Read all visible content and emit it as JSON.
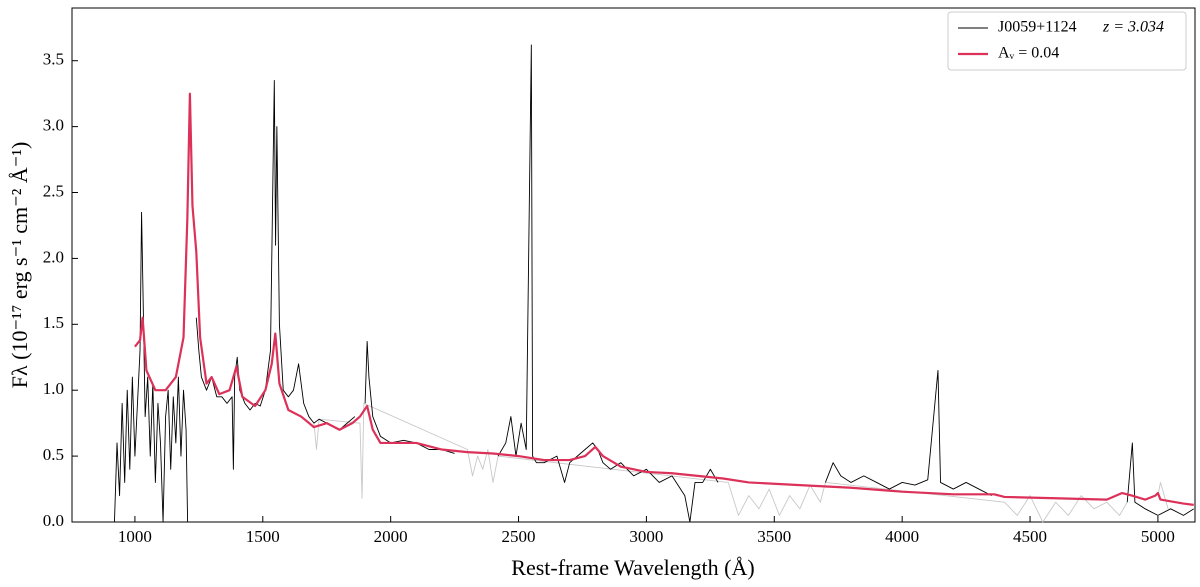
{
  "chart_data": {
    "type": "line",
    "xlabel": "Rest-frame Wavelength (Å)",
    "ylabel": "Fλ (10⁻¹⁷ erg s⁻¹ cm⁻² Å⁻¹)",
    "xlim": [
      754,
      5145
    ],
    "ylim": [
      0,
      3.9
    ],
    "xticks": [
      1000,
      1500,
      2000,
      2500,
      3000,
      3500,
      4000,
      4500,
      5000
    ],
    "yticks": [
      {
        "value": 0,
        "label": "0.0"
      },
      0.5,
      {
        "value": 1,
        "label": "1.0"
      },
      1.5,
      {
        "value": 2,
        "label": "2.0"
      },
      2.5,
      {
        "value": 3,
        "label": "3.0"
      },
      3.5
    ],
    "legend_position": "upper right",
    "legend_annotation": "z = 3.034",
    "series": [
      {
        "name": "J0059+1124",
        "color": "#000000",
        "width": 0.9,
        "x": [
          920,
          930,
          940,
          950,
          960,
          970,
          980,
          990,
          1000,
          1010,
          1020,
          1026,
          1032,
          1040,
          1050,
          1060,
          1070,
          1080,
          1090,
          1100,
          1110,
          1120,
          1130,
          1140,
          1150,
          1160,
          1170,
          1180,
          1190,
          1200,
          1206,
          1212,
          1240,
          1250,
          1260,
          1280,
          1300,
          1320,
          1340,
          1360,
          1380,
          1385,
          1390,
          1400,
          1410,
          1430,
          1450,
          1470,
          1490,
          1510,
          1530,
          1545,
          1550,
          1555,
          1565,
          1580,
          1600,
          1620,
          1640,
          1660,
          1680,
          1700,
          1720,
          1750,
          1780,
          1800,
          1830,
          1860,
          1880,
          1900,
          1908,
          1915,
          1930,
          1960,
          2000,
          2050,
          2100,
          2150,
          2200,
          2250,
          2300,
          2420,
          2450,
          2470,
          2490,
          2510,
          2530,
          2550,
          2555,
          2570,
          2600,
          2650,
          2680,
          2700,
          2730,
          2760,
          2790,
          2810,
          2830,
          2860,
          2900,
          2950,
          3000,
          3050,
          3100,
          3150,
          3170,
          3190,
          3220,
          3250,
          3280,
          3300,
          3700,
          3730,
          3760,
          3800,
          3850,
          3900,
          3950,
          4000,
          4050,
          4100,
          4140,
          4150,
          4200,
          4250,
          4300,
          4350,
          4380,
          4880,
          4900,
          4910,
          4950,
          5000,
          5050,
          5100,
          5140
        ],
        "values": [
          0.0,
          0.6,
          0.2,
          0.9,
          0.3,
          1.0,
          0.4,
          1.1,
          0.5,
          0.9,
          1.3,
          2.35,
          1.7,
          0.8,
          1.1,
          0.5,
          1.05,
          0.3,
          0.9,
          0.6,
          0.0,
          0.8,
          1.0,
          0.4,
          0.95,
          0.6,
          1.1,
          0.5,
          1.0,
          0.7,
          0.0,
          null,
          1.55,
          1.3,
          1.1,
          1.0,
          1.1,
          0.95,
          0.95,
          0.9,
          0.95,
          0.4,
          1.1,
          1.25,
          1.0,
          0.9,
          0.85,
          0.9,
          0.88,
          1.0,
          1.3,
          3.35,
          2.1,
          3.0,
          1.5,
          1.0,
          0.95,
          1.0,
          1.2,
          0.9,
          0.8,
          0.75,
          0.78,
          0.75,
          0.72,
          0.7,
          0.75,
          0.8,
          null,
          0.9,
          1.37,
          1.1,
          0.8,
          0.65,
          0.6,
          0.62,
          0.6,
          0.55,
          0.55,
          0.52,
          null,
          0.5,
          0.6,
          0.8,
          0.5,
          0.75,
          0.55,
          3.62,
          0.5,
          0.45,
          0.45,
          0.5,
          0.3,
          0.45,
          0.5,
          0.55,
          0.6,
          0.55,
          0.45,
          0.4,
          0.45,
          0.35,
          0.4,
          0.3,
          0.35,
          0.2,
          0.0,
          0.3,
          0.3,
          0.4,
          0.3,
          null,
          0.3,
          0.45,
          0.35,
          0.3,
          0.35,
          0.3,
          0.25,
          0.3,
          0.28,
          0.32,
          1.15,
          0.3,
          0.25,
          0.3,
          0.25,
          0.2,
          null,
          0.15,
          0.6,
          0.15,
          0.1,
          0.05,
          0.1,
          0.05,
          0.1
        ]
      },
      {
        "color": "#c8c8c8",
        "width": 0.9,
        "x": [
          1700,
          1710,
          1720,
          1880,
          1888,
          1895,
          2300,
          2320,
          2340,
          2360,
          2380,
          2400,
          2420,
          3320,
          3360,
          3400,
          3440,
          3480,
          3520,
          3560,
          3600,
          3640,
          3680,
          3700,
          4400,
          4450,
          4500,
          4550,
          4600,
          4650,
          4700,
          4750,
          4800,
          4850,
          4880,
          4950,
          5000,
          5010,
          5040
        ],
        "values": [
          0.75,
          0.55,
          0.78,
          0.75,
          0.18,
          0.9,
          0.55,
          0.35,
          0.5,
          0.4,
          0.55,
          0.3,
          0.5,
          0.3,
          0.05,
          0.2,
          0.1,
          0.25,
          0.05,
          0.2,
          0.1,
          0.28,
          0.15,
          0.3,
          0.15,
          0.05,
          0.2,
          0.0,
          0.15,
          0.05,
          0.2,
          0.1,
          0.15,
          0.05,
          0.15,
          null,
          0.2,
          0.3,
          0.1
        ]
      },
      {
        "name": "Aᵥ = 0.04",
        "color": "#dc3158",
        "width": 2.2,
        "x": [
          1000,
          1020,
          1030,
          1045,
          1080,
          1120,
          1160,
          1190,
          1205,
          1215,
          1225,
          1240,
          1255,
          1280,
          1300,
          1330,
          1370,
          1397,
          1420,
          1470,
          1510,
          1535,
          1549,
          1565,
          1600,
          1650,
          1700,
          1750,
          1800,
          1850,
          1880,
          1908,
          1930,
          1960,
          2000,
          2100,
          2200,
          2300,
          2400,
          2500,
          2600,
          2700,
          2760,
          2800,
          2830,
          2900,
          3000,
          3100,
          3200,
          3300,
          3400,
          3600,
          3800,
          4000,
          4200,
          4360,
          4400,
          4600,
          4800,
          4860,
          4900,
          4950,
          4990,
          5000,
          5010,
          5100,
          5140
        ],
        "values": [
          1.33,
          1.38,
          1.55,
          1.15,
          1.0,
          1.0,
          1.1,
          1.4,
          2.3,
          3.25,
          2.4,
          2.05,
          1.4,
          1.05,
          1.1,
          0.97,
          1.0,
          1.18,
          0.95,
          0.88,
          1.0,
          1.2,
          1.43,
          1.05,
          0.85,
          0.8,
          0.72,
          0.75,
          0.7,
          0.75,
          0.8,
          0.88,
          0.7,
          0.6,
          0.6,
          0.6,
          0.55,
          0.53,
          0.52,
          0.5,
          0.47,
          0.47,
          0.5,
          0.57,
          0.5,
          0.42,
          0.38,
          0.37,
          0.35,
          0.33,
          0.3,
          0.28,
          0.26,
          0.23,
          0.21,
          0.21,
          0.19,
          0.18,
          0.17,
          0.22,
          0.2,
          0.17,
          0.2,
          0.22,
          0.17,
          0.14,
          0.13
        ]
      }
    ]
  }
}
